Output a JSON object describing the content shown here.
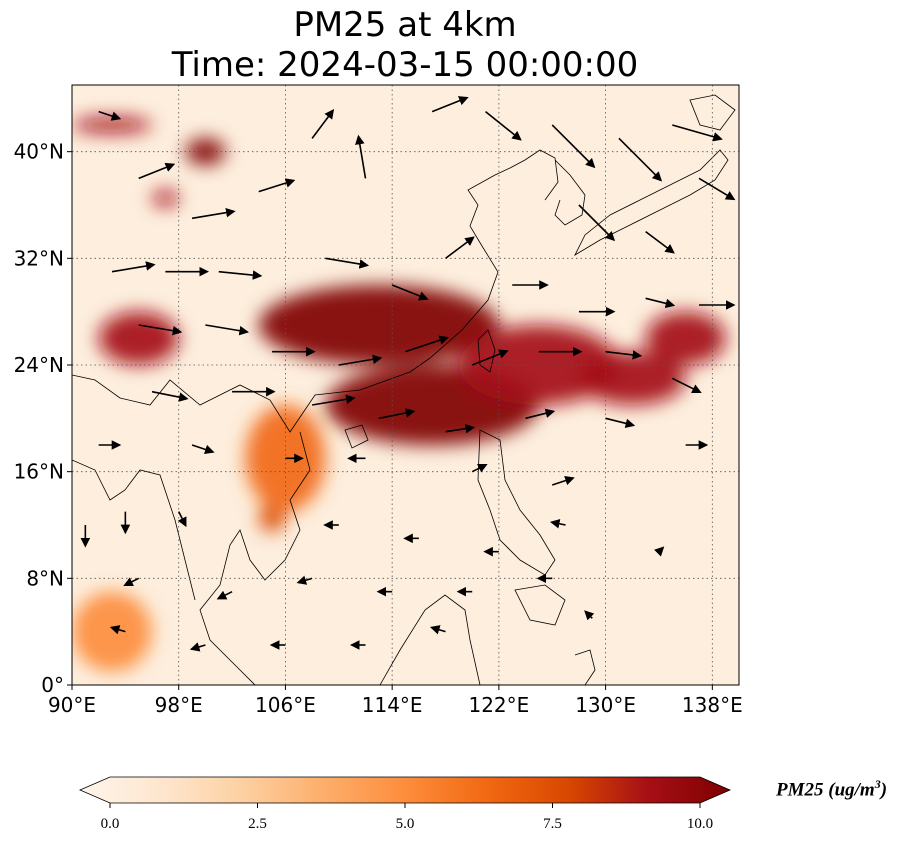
{
  "title_line1": "PM25 at 4km",
  "title_line2": "Time: 2024-03-15 00:00:00",
  "map": {
    "lon_range": [
      90,
      140
    ],
    "lat_range": [
      0,
      45
    ],
    "lon_ticks": [
      {
        "value": 90,
        "label": "90°E"
      },
      {
        "value": 98,
        "label": "98°E"
      },
      {
        "value": 106,
        "label": "106°E"
      },
      {
        "value": 114,
        "label": "114°E"
      },
      {
        "value": 122,
        "label": "122°E"
      },
      {
        "value": 130,
        "label": "130°E"
      },
      {
        "value": 138,
        "label": "138°E"
      }
    ],
    "lat_ticks": [
      {
        "value": 0,
        "label": "0°"
      },
      {
        "value": 8,
        "label": "8°N"
      },
      {
        "value": 16,
        "label": "16°N"
      },
      {
        "value": 24,
        "label": "24°N"
      },
      {
        "value": 32,
        "label": "32°N"
      },
      {
        "value": 40,
        "label": "40°N"
      }
    ],
    "gridlines": "dotted"
  },
  "colorbar": {
    "label": "PM25 (ug/m",
    "label_sup": "3",
    "label_close": ")",
    "min": 0,
    "max": 10,
    "extend": "both",
    "ticks": [
      "0.0",
      "2.5",
      "5.0",
      "7.5",
      "10.0"
    ],
    "colors": [
      "#fff5eb",
      "#fee6ce",
      "#fdd0a2",
      "#fdae6b",
      "#fd8d3c",
      "#f16913",
      "#d94801",
      "#a50f15",
      "#7f0000"
    ]
  },
  "pm25_field": [
    {
      "lon": 113,
      "lat": 27,
      "rlon": 9,
      "rlat": 3,
      "value": 10
    },
    {
      "lon": 117,
      "lat": 21,
      "rlon": 8,
      "rlat": 3,
      "value": 10
    },
    {
      "lon": 125,
      "lat": 24,
      "rlon": 6,
      "rlat": 3,
      "value": 9
    },
    {
      "lon": 132,
      "lat": 23,
      "rlon": 4,
      "rlat": 2,
      "value": 9
    },
    {
      "lon": 136,
      "lat": 26,
      "rlon": 3,
      "rlat": 2,
      "value": 9
    },
    {
      "lon": 95,
      "lat": 26,
      "rlon": 3,
      "rlat": 2,
      "value": 9
    },
    {
      "lon": 100,
      "lat": 40,
      "rlon": 1.5,
      "rlat": 1,
      "value": 10
    },
    {
      "lon": 97,
      "lat": 36.5,
      "rlon": 1,
      "rlat": 0.6,
      "value": 9
    },
    {
      "lon": 93,
      "lat": 42,
      "rlon": 3,
      "rlat": 0.6,
      "value": 9
    },
    {
      "lon": 105,
      "lat": 12.5,
      "rlon": 1,
      "rlat": 1,
      "value": 8
    },
    {
      "lon": 106,
      "lat": 17,
      "rlon": 3,
      "rlat": 4,
      "value": 6
    },
    {
      "lon": 93,
      "lat": 4,
      "rlon": 3,
      "rlat": 3,
      "value": 5
    }
  ],
  "wind_vectors": [
    {
      "lon": 92,
      "lat": 43,
      "u": 1.5,
      "v": -0.5
    },
    {
      "lon": 95,
      "lat": 38,
      "u": 2.5,
      "v": 1
    },
    {
      "lon": 99,
      "lat": 35,
      "u": 3,
      "v": 0.5
    },
    {
      "lon": 104,
      "lat": 37,
      "u": 2.5,
      "v": 0.8
    },
    {
      "lon": 108,
      "lat": 41,
      "u": 1.5,
      "v": 2
    },
    {
      "lon": 112,
      "lat": 38,
      "u": -0.5,
      "v": 3
    },
    {
      "lon": 117,
      "lat": 43,
      "u": 2.5,
      "v": 1
    },
    {
      "lon": 121,
      "lat": 43,
      "u": 2.5,
      "v": -2
    },
    {
      "lon": 126,
      "lat": 42,
      "u": 3,
      "v": -3
    },
    {
      "lon": 131,
      "lat": 41,
      "u": 3,
      "v": -3
    },
    {
      "lon": 135,
      "lat": 42,
      "u": 3.5,
      "v": -1
    },
    {
      "lon": 137,
      "lat": 38,
      "u": 2.5,
      "v": -1.5
    },
    {
      "lon": 128,
      "lat": 36,
      "u": 2.5,
      "v": -2.5
    },
    {
      "lon": 133,
      "lat": 34,
      "u": 2,
      "v": -1.5
    },
    {
      "lon": 93,
      "lat": 31,
      "u": 3,
      "v": 0.5
    },
    {
      "lon": 97,
      "lat": 31,
      "u": 3,
      "v": 0
    },
    {
      "lon": 101,
      "lat": 31,
      "u": 3,
      "v": -0.3
    },
    {
      "lon": 109,
      "lat": 32,
      "u": 3,
      "v": -0.5
    },
    {
      "lon": 114,
      "lat": 30,
      "u": 2.5,
      "v": -1
    },
    {
      "lon": 118,
      "lat": 32,
      "u": 2,
      "v": 1.5
    },
    {
      "lon": 123,
      "lat": 30,
      "u": 2.5,
      "v": 0
    },
    {
      "lon": 128,
      "lat": 28,
      "u": 2.5,
      "v": 0
    },
    {
      "lon": 133,
      "lat": 29,
      "u": 2,
      "v": -0.5
    },
    {
      "lon": 137,
      "lat": 28.5,
      "u": 2.5,
      "v": 0
    },
    {
      "lon": 95,
      "lat": 27,
      "u": 3,
      "v": -0.5
    },
    {
      "lon": 100,
      "lat": 27,
      "u": 3,
      "v": -0.5
    },
    {
      "lon": 105,
      "lat": 25,
      "u": 3,
      "v": 0
    },
    {
      "lon": 110,
      "lat": 24,
      "u": 3,
      "v": 0.5
    },
    {
      "lon": 115,
      "lat": 25,
      "u": 3,
      "v": 1
    },
    {
      "lon": 120,
      "lat": 24,
      "u": 2.5,
      "v": 1
    },
    {
      "lon": 125,
      "lat": 25,
      "u": 3,
      "v": 0
    },
    {
      "lon": 130,
      "lat": 25,
      "u": 2.5,
      "v": -0.3
    },
    {
      "lon": 135,
      "lat": 23,
      "u": 2,
      "v": -1
    },
    {
      "lon": 96,
      "lat": 22,
      "u": 2.5,
      "v": -0.5
    },
    {
      "lon": 102,
      "lat": 22,
      "u": 3,
      "v": 0
    },
    {
      "lon": 108,
      "lat": 21,
      "u": 3,
      "v": 0.5
    },
    {
      "lon": 113,
      "lat": 20,
      "u": 2.5,
      "v": 0.5
    },
    {
      "lon": 118,
      "lat": 19,
      "u": 2,
      "v": 0.3
    },
    {
      "lon": 124,
      "lat": 20,
      "u": 2,
      "v": 0.5
    },
    {
      "lon": 130,
      "lat": 20,
      "u": 2,
      "v": -0.5
    },
    {
      "lon": 136,
      "lat": 18,
      "u": 1.5,
      "v": 0
    },
    {
      "lon": 92,
      "lat": 18,
      "u": 1.5,
      "v": 0
    },
    {
      "lon": 99,
      "lat": 18,
      "u": 1.5,
      "v": -0.5
    },
    {
      "lon": 106,
      "lat": 17,
      "u": 1.2,
      "v": 0
    },
    {
      "lon": 112,
      "lat": 17,
      "u": -1.2,
      "v": 0
    },
    {
      "lon": 120,
      "lat": 16,
      "u": 1,
      "v": 0.5
    },
    {
      "lon": 126,
      "lat": 15,
      "u": 1.5,
      "v": 0.5
    },
    {
      "lon": 91,
      "lat": 12,
      "u": 0,
      "v": -1.5
    },
    {
      "lon": 94,
      "lat": 13,
      "u": 0,
      "v": -1.5
    },
    {
      "lon": 98,
      "lat": 13,
      "u": 0.5,
      "v": -1
    },
    {
      "lon": 110,
      "lat": 12,
      "u": -1,
      "v": 0
    },
    {
      "lon": 116,
      "lat": 11,
      "u": -1,
      "v": 0
    },
    {
      "lon": 122,
      "lat": 10,
      "u": -1,
      "v": 0
    },
    {
      "lon": 127,
      "lat": 12,
      "u": -1,
      "v": 0.2
    },
    {
      "lon": 95,
      "lat": 8,
      "u": -1,
      "v": -0.5
    },
    {
      "lon": 102,
      "lat": 7,
      "u": -1,
      "v": -0.5
    },
    {
      "lon": 108,
      "lat": 8,
      "u": -1,
      "v": -0.3
    },
    {
      "lon": 114,
      "lat": 7,
      "u": -1,
      "v": 0
    },
    {
      "lon": 120,
      "lat": 7,
      "u": -1,
      "v": 0
    },
    {
      "lon": 126,
      "lat": 8,
      "u": -1,
      "v": 0
    },
    {
      "lon": 94,
      "lat": 4,
      "u": -1,
      "v": 0.3
    },
    {
      "lon": 100,
      "lat": 3,
      "u": -1,
      "v": -0.3
    },
    {
      "lon": 106,
      "lat": 3,
      "u": -1,
      "v": 0
    },
    {
      "lon": 112,
      "lat": 3,
      "u": -1,
      "v": 0
    },
    {
      "lon": 118,
      "lat": 4,
      "u": -1,
      "v": 0.3
    },
    {
      "lon": 129,
      "lat": 5,
      "u": -0.5,
      "v": 0.5
    },
    {
      "lon": 134,
      "lat": 10,
      "u": 0.3,
      "v": 0.3
    }
  ]
}
